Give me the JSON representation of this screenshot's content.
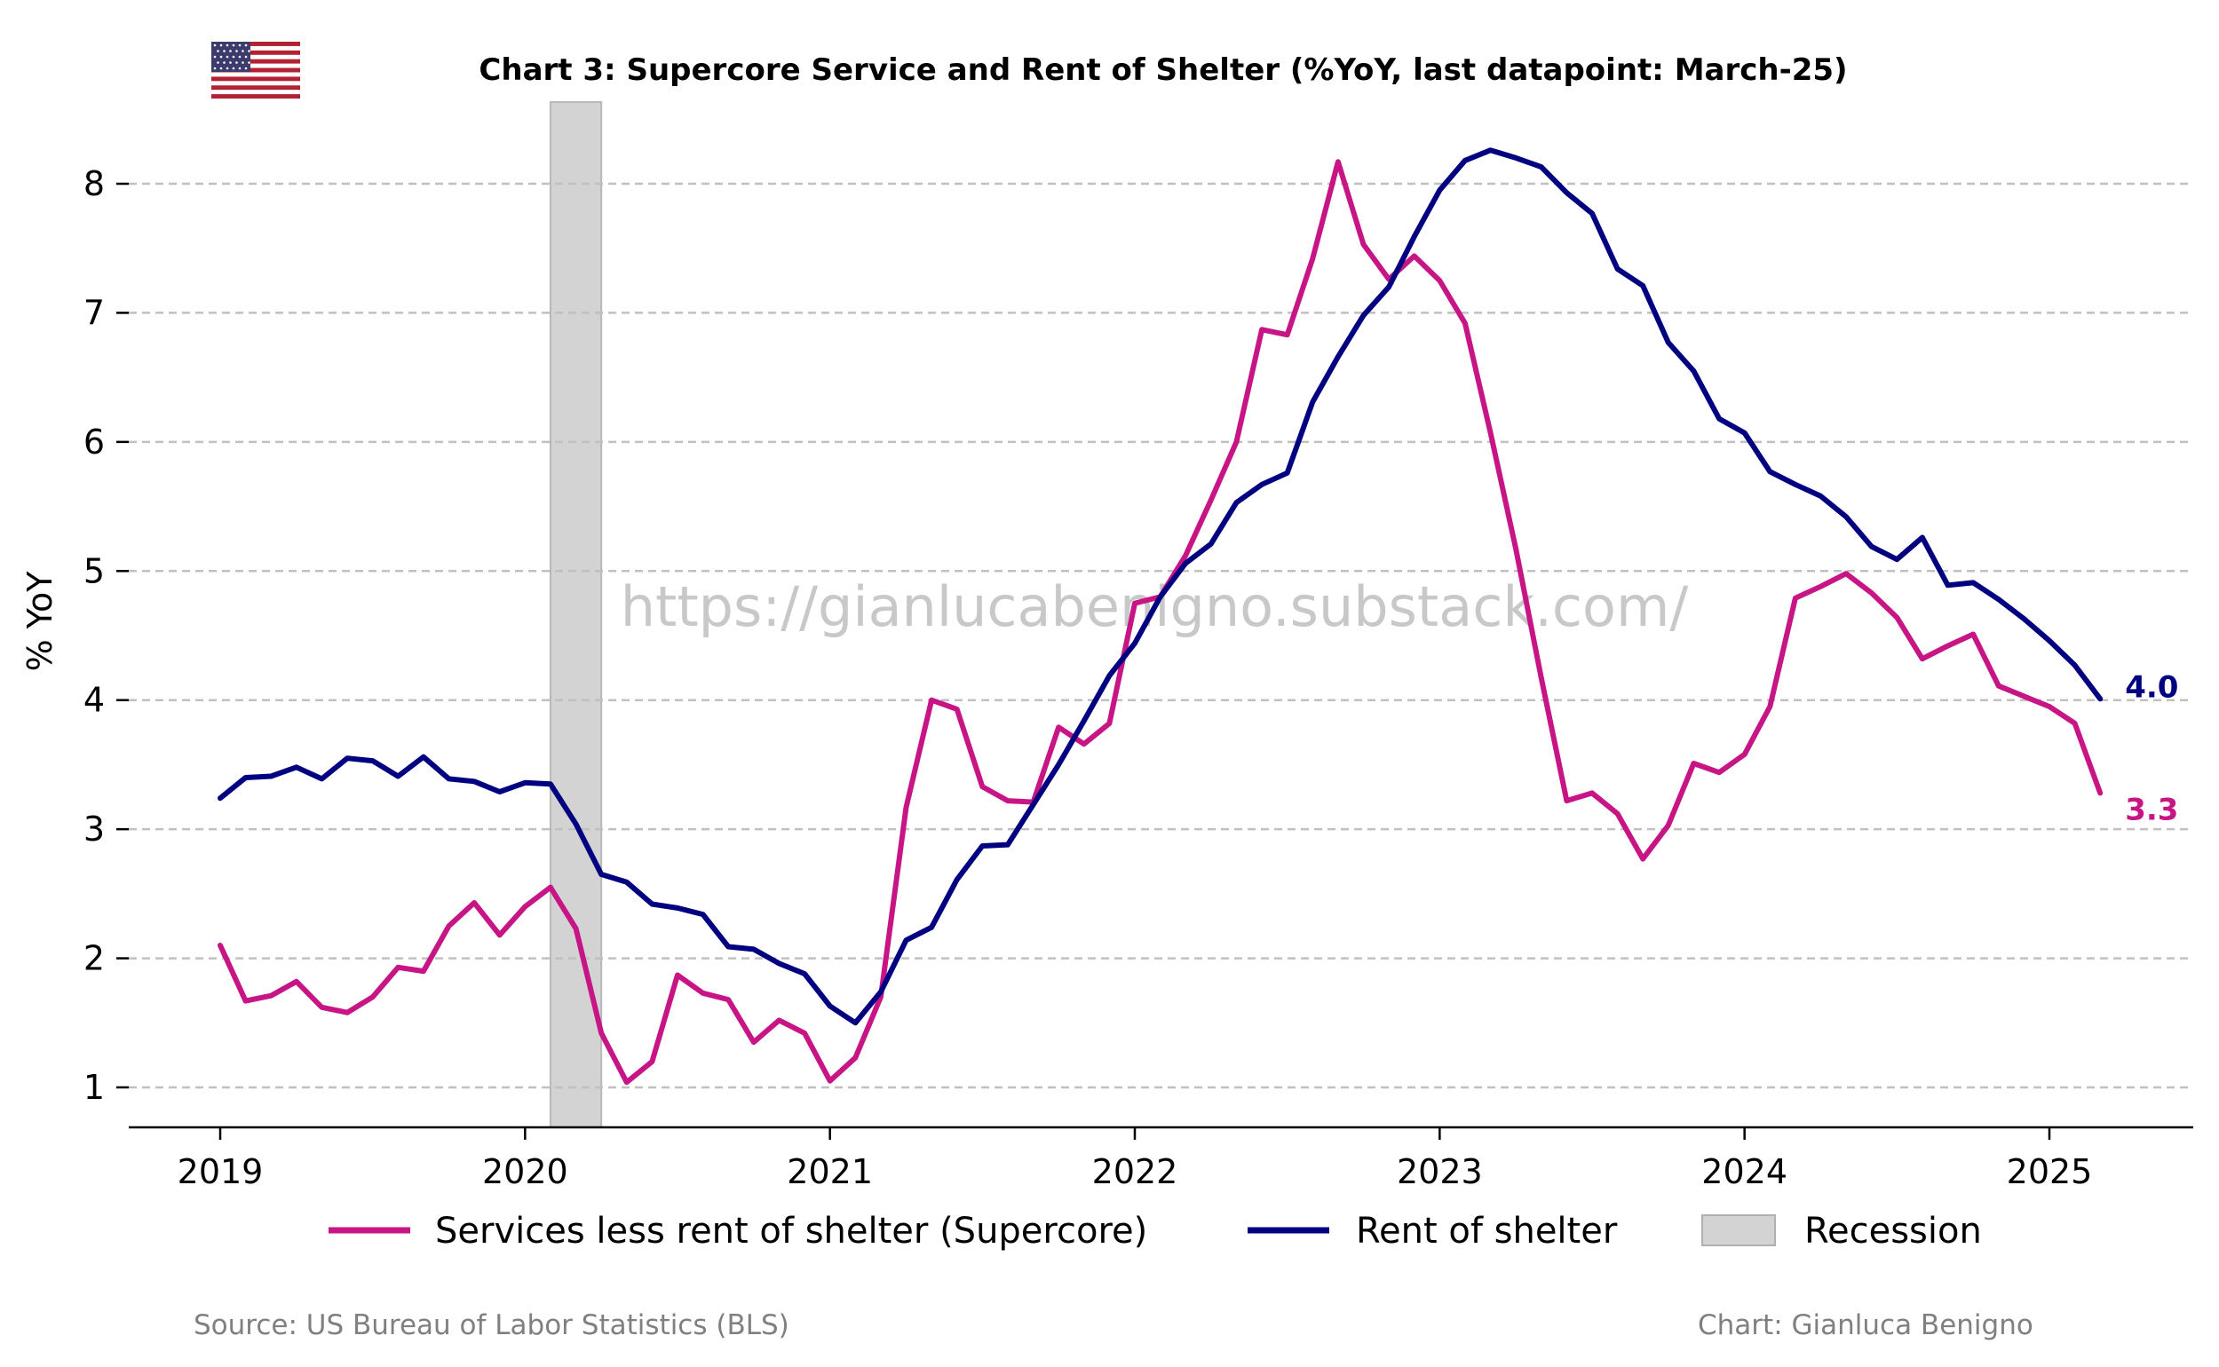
{
  "chart_data": {
    "type": "line",
    "title": "Chart 3: Supercore Service and Rent of Shelter (%YoY, last datapoint: March-25)",
    "ylabel": "% YoY",
    "xlabel": "",
    "ylim": [
      0.67,
      8.63
    ],
    "yticks": [
      1,
      2,
      3,
      4,
      5,
      6,
      7,
      8
    ],
    "xticks": [
      "2019",
      "2020",
      "2021",
      "2022",
      "2023",
      "2024",
      "2025"
    ],
    "grid": "horizontal dashed",
    "legend_position": "bottom",
    "x_start": "2019-01",
    "x_end": "2025-03",
    "recession": {
      "label": "Recession",
      "start": "2020-02",
      "end": "2020-04",
      "color": "#d3d3d3"
    },
    "series": [
      {
        "name": "Services less rent of shelter (Supercore)",
        "color": "#c71585",
        "end_label": "3.3",
        "values": [
          2.1,
          1.67,
          1.71,
          1.82,
          1.62,
          1.58,
          1.7,
          1.93,
          1.9,
          2.25,
          2.43,
          2.18,
          2.4,
          2.55,
          2.23,
          1.42,
          1.04,
          1.2,
          1.87,
          1.73,
          1.68,
          1.35,
          1.52,
          1.42,
          1.05,
          1.23,
          1.7,
          3.17,
          4.0,
          3.93,
          3.33,
          3.22,
          3.21,
          3.79,
          3.66,
          3.82,
          4.75,
          4.8,
          5.12,
          5.55,
          6.0,
          6.87,
          6.83,
          7.42,
          8.17,
          7.53,
          7.26,
          7.44,
          7.25,
          6.92,
          6.07,
          5.17,
          4.17,
          3.22,
          3.28,
          3.12,
          2.77,
          3.03,
          3.51,
          3.44,
          3.58,
          3.95,
          4.79,
          4.88,
          4.98,
          4.83,
          4.64,
          4.32,
          4.42,
          4.51,
          4.11,
          4.03,
          3.95,
          3.82,
          3.28
        ]
      },
      {
        "name": "Rent of shelter",
        "color": "#000080",
        "end_label": "4.0",
        "values": [
          3.24,
          3.4,
          3.41,
          3.48,
          3.39,
          3.55,
          3.53,
          3.41,
          3.56,
          3.39,
          3.37,
          3.29,
          3.36,
          3.35,
          3.04,
          2.65,
          2.59,
          2.42,
          2.39,
          2.34,
          2.09,
          2.07,
          1.96,
          1.88,
          1.63,
          1.5,
          1.74,
          2.14,
          2.24,
          2.61,
          2.87,
          2.88,
          3.19,
          3.5,
          3.84,
          4.19,
          4.44,
          4.8,
          5.06,
          5.21,
          5.53,
          5.67,
          5.76,
          6.31,
          6.66,
          6.98,
          7.2,
          7.59,
          7.95,
          8.18,
          8.26,
          8.2,
          8.13,
          7.93,
          7.77,
          7.34,
          7.21,
          6.77,
          6.55,
          6.18,
          6.07,
          5.77,
          5.67,
          5.58,
          5.42,
          5.19,
          5.09,
          5.26,
          4.89,
          4.91,
          4.78,
          4.63,
          4.46,
          4.27,
          4.01
        ]
      }
    ],
    "watermark": "https://gianlucabenigno.substack.com/",
    "source": "Source: US Bureau of Labor Statistics (BLS)",
    "credit": "Chart: Gianluca Benigno",
    "flag_icon": "us-flag-icon"
  }
}
